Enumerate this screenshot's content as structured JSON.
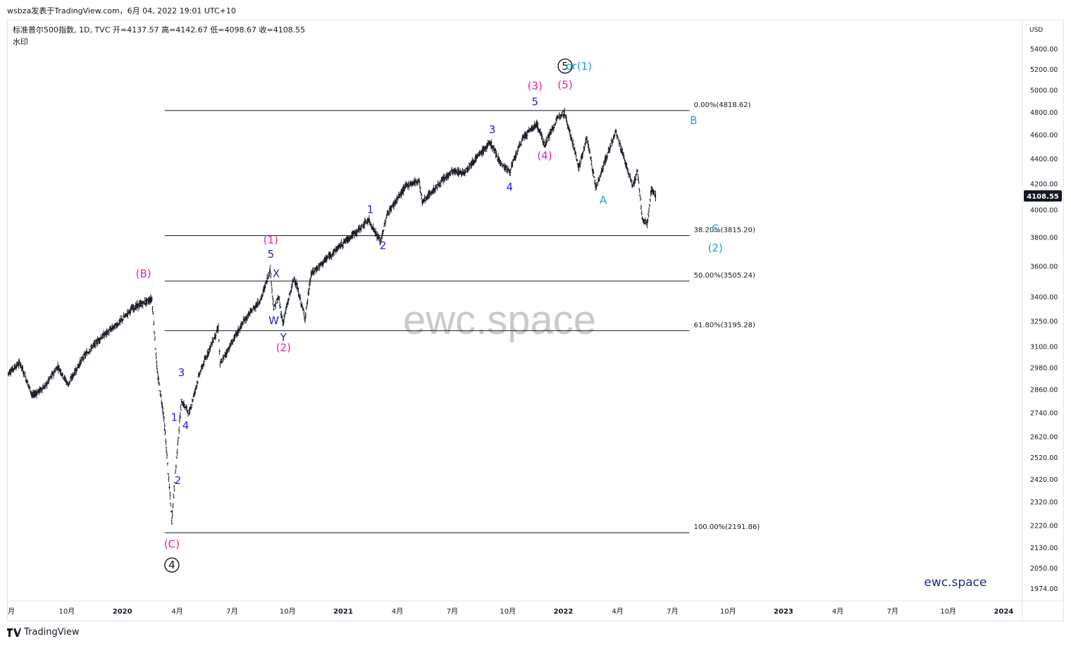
{
  "header": {
    "meta": "wsbza发表于TradingView.com，6月 04, 2022 19:01 UTC+10",
    "symbol_line": "标准普尔500指数, 1D, TVC  开=4137.57  高=4142.67  低=4098.67  收=4108.55",
    "watermark_label": "水印"
  },
  "footer": {
    "brand": "TradingView",
    "logo_icon": "tradingview-logo-icon"
  },
  "chart_data": {
    "type": "line",
    "ohlc": {
      "open": 4137.57,
      "high": 4142.67,
      "low": 4098.67,
      "close": 4108.55
    },
    "currency": "USD",
    "last_price_label": "4108.55",
    "y_scale": "log",
    "ylim": [
      1930,
      5700
    ],
    "y_ticks": [
      5400,
      5200,
      5000,
      4800,
      4600,
      4400,
      4200,
      4000,
      3800,
      3600,
      3400,
      3250,
      3100,
      2980,
      2860,
      2740,
      2620,
      2520,
      2420,
      2320,
      2220,
      2130,
      2050,
      1974
    ],
    "y_tick_labels": [
      "5400.00",
      "5200.00",
      "5000.00",
      "4800.00",
      "4600.00",
      "4400.00",
      "4200.00",
      "4000.00",
      "3800.00",
      "3600.00",
      "3400.00",
      "3250.00",
      "3100.00",
      "2980.00",
      "2860.00",
      "2740.00",
      "2620.00",
      "2520.00",
      "2420.00",
      "2320.00",
      "2220.00",
      "2130.00",
      "2050.00",
      "1974.00"
    ],
    "xlim": [
      "2019-06-25",
      "2024-02-01"
    ],
    "x_ticks": [
      {
        "date": "2019-07-01",
        "label": "月"
      },
      {
        "date": "2019-10-01",
        "label": "10月"
      },
      {
        "date": "2020-01-01",
        "label": "2020"
      },
      {
        "date": "2020-04-01",
        "label": "4月"
      },
      {
        "date": "2020-07-01",
        "label": "7月"
      },
      {
        "date": "2020-10-01",
        "label": "10月"
      },
      {
        "date": "2021-01-01",
        "label": "2021"
      },
      {
        "date": "2021-04-01",
        "label": "4月"
      },
      {
        "date": "2021-07-01",
        "label": "7月"
      },
      {
        "date": "2021-10-01",
        "label": "10月"
      },
      {
        "date": "2022-01-01",
        "label": "2022"
      },
      {
        "date": "2022-04-01",
        "label": "4月"
      },
      {
        "date": "2022-07-01",
        "label": "7月"
      },
      {
        "date": "2022-10-01",
        "label": "10月"
      },
      {
        "date": "2023-01-01",
        "label": "2023"
      },
      {
        "date": "2023-04-01",
        "label": "4月"
      },
      {
        "date": "2023-07-01",
        "label": "7月"
      },
      {
        "date": "2023-10-01",
        "label": "10月"
      },
      {
        "date": "2024-01-01",
        "label": "2024"
      }
    ],
    "series": [
      {
        "x": [
          "2019-06-25",
          "2019-07-15",
          "2019-08-05",
          "2019-08-26",
          "2019-09-16",
          "2019-10-03",
          "2019-10-28",
          "2019-11-25",
          "2019-12-26",
          "2020-01-17",
          "2020-02-19",
          "2020-02-28",
          "2020-03-09",
          "2020-03-23",
          "2020-04-08",
          "2020-04-21",
          "2020-05-08",
          "2020-06-08",
          "2020-06-11",
          "2020-07-20",
          "2020-08-18",
          "2020-09-02",
          "2020-09-08",
          "2020-09-16",
          "2020-09-23",
          "2020-10-12",
          "2020-10-30",
          "2020-11-09",
          "2020-12-31",
          "2021-01-25",
          "2021-02-12",
          "2021-03-04",
          "2021-03-15",
          "2021-04-16",
          "2021-05-07",
          "2021-05-12",
          "2021-06-30",
          "2021-07-19",
          "2021-08-30",
          "2021-09-02",
          "2021-09-20",
          "2021-10-04",
          "2021-10-26",
          "2021-11-18",
          "2021-12-01",
          "2021-12-27",
          "2022-01-03",
          "2022-01-27",
          "2022-02-09",
          "2022-02-24",
          "2022-03-29",
          "2022-04-26",
          "2022-05-04",
          "2022-05-12",
          "2022-05-20",
          "2022-05-27",
          "2022-06-03"
        ],
        "y": [
          2950,
          3010,
          2830,
          2880,
          2990,
          2890,
          3040,
          3150,
          3240,
          3330,
          3390,
          2950,
          2740,
          2240,
          2800,
          2740,
          2950,
          3210,
          3000,
          3250,
          3390,
          3580,
          3330,
          3400,
          3240,
          3530,
          3270,
          3550,
          3760,
          3850,
          3930,
          3770,
          3970,
          4190,
          4230,
          4060,
          4300,
          4290,
          4520,
          4540,
          4360,
          4300,
          4580,
          4700,
          4520,
          4790,
          4800,
          4330,
          4580,
          4170,
          4630,
          4180,
          4300,
          3930,
          3900,
          4160,
          4108.55
        ]
      }
    ],
    "fib_levels": [
      {
        "label": "0.00%(4818.62)",
        "value": 4818.62
      },
      {
        "label": "38.20%(3815.20)",
        "value": 3815.2
      },
      {
        "label": "50.00%(3505.24)",
        "value": 3505.24
      },
      {
        "label": "61.80%(3195.28)",
        "value": 3195.28
      },
      {
        "label": "100.00%(2191.86)",
        "value": 2191.86
      }
    ],
    "fib_x_range": [
      "2020-03-23",
      "2022-06-30"
    ],
    "wave_labels": [
      {
        "text": "(B)",
        "date": "2020-02-05",
        "price": 3530,
        "color": "#e91ea3"
      },
      {
        "text": "(C)",
        "date": "2020-03-23",
        "price": 2132,
        "color": "#e91ea3"
      },
      {
        "text": "4",
        "date": "2020-03-23",
        "price": 2050,
        "color": "#131722",
        "circled": true
      },
      {
        "text": "1",
        "date": "2020-03-27",
        "price": 2700,
        "color": "#1f1fd6"
      },
      {
        "text": "2",
        "date": "2020-04-02",
        "price": 2400,
        "color": "#1f1fd6"
      },
      {
        "text": "3",
        "date": "2020-04-08",
        "price": 2935,
        "color": "#1f1fd6"
      },
      {
        "text": "4",
        "date": "2020-04-15",
        "price": 2660,
        "color": "#1f1fd6"
      },
      {
        "text": "(1)",
        "date": "2020-09-03",
        "price": 3760,
        "color": "#e91ea3"
      },
      {
        "text": "5",
        "date": "2020-09-03",
        "price": 3660,
        "color": "#1f1fd6"
      },
      {
        "text": "X",
        "date": "2020-09-12",
        "price": 3530,
        "color": "#1f1fd6"
      },
      {
        "text": "W",
        "date": "2020-09-08",
        "price": 3235,
        "color": "#1f1fd6"
      },
      {
        "text": "Y",
        "date": "2020-09-24",
        "price": 3135,
        "color": "#1f1fd6"
      },
      {
        "text": "(2)",
        "date": "2020-09-24",
        "price": 3075,
        "color": "#e91ea3"
      },
      {
        "text": "1",
        "date": "2021-02-15",
        "price": 3980,
        "color": "#1f1fd6"
      },
      {
        "text": "2",
        "date": "2021-03-08",
        "price": 3720,
        "color": "#1f1fd6"
      },
      {
        "text": "3",
        "date": "2021-09-05",
        "price": 4620,
        "color": "#1f1fd6"
      },
      {
        "text": "4",
        "date": "2021-10-04",
        "price": 4150,
        "color": "#1f1fd6"
      },
      {
        "text": "(3)",
        "date": "2021-11-15",
        "price": 5010,
        "color": "#e91ea3"
      },
      {
        "text": "5",
        "date": "2021-11-15",
        "price": 4865,
        "color": "#1f1fd6"
      },
      {
        "text": "(4)",
        "date": "2021-12-01",
        "price": 4400,
        "color": "#e91ea3"
      },
      {
        "text": "(5)",
        "date": "2022-01-04",
        "price": 5020,
        "color": "#e91ea3"
      },
      {
        "text": "5",
        "date": "2022-01-04",
        "price": 5200,
        "color": "#131722",
        "circled": true
      },
      {
        "text": "or",
        "date": "2022-01-14",
        "price": 5200,
        "color": "#1ba3c6"
      },
      {
        "text": "(1)",
        "date": "2022-02-05",
        "price": 5200,
        "color": "#1ba3c6"
      },
      {
        "text": "A",
        "date": "2022-03-08",
        "price": 4050,
        "color": "#1ba3c6"
      },
      {
        "text": "B",
        "date": "2022-08-05",
        "price": 4700,
        "color": "#1ba3c6"
      },
      {
        "text": "C",
        "date": "2022-09-10",
        "price": 3840,
        "color": "#1ba3c6"
      },
      {
        "text": "(2)",
        "date": "2022-09-10",
        "price": 3705,
        "color": "#1ba3c6"
      }
    ],
    "watermark_text": "ewc.space",
    "brand_text": "ewc.space"
  }
}
